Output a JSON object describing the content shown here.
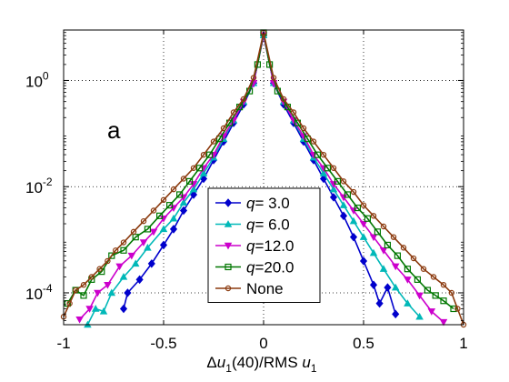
{
  "chart_data": {
    "type": "line",
    "title": "",
    "panel_label": "a",
    "xlabel": {
      "prefix": "Δ",
      "var": "u",
      "sub": "1",
      "middle": "(40)/RMS ",
      "var2": "u",
      "sub2": "1"
    },
    "ylabel": "",
    "xlim": [
      -1,
      1
    ],
    "ylim_log10": [
      -4.6,
      0.95
    ],
    "y_scale": "log",
    "grid": true,
    "legend_placement": "lower-center",
    "x_ticks": [
      {
        "value": -1,
        "label": "-1"
      },
      {
        "value": -0.5,
        "label": "-0.5"
      },
      {
        "value": 0,
        "label": "0"
      },
      {
        "value": 0.5,
        "label": "0.5"
      },
      {
        "value": 1,
        "label": "1"
      }
    ],
    "y_ticks": [
      {
        "exp": 0,
        "base": "10",
        "sup": "0"
      },
      {
        "exp": -2,
        "base": "10",
        "sup": "-2"
      },
      {
        "exp": -4,
        "base": "10",
        "sup": "-4"
      }
    ],
    "series": [
      {
        "name": "q= 3.0",
        "label_q": "q",
        "label_rest": "= 3.0",
        "color": "#0000cc",
        "marker": "diamond",
        "points": [
          [
            -0.7,
            -4.3
          ],
          [
            -0.68,
            -4.0
          ],
          [
            -0.62,
            -3.75
          ],
          [
            -0.56,
            -3.45
          ],
          [
            -0.5,
            -3.1
          ],
          [
            -0.45,
            -2.8
          ],
          [
            -0.4,
            -2.45
          ],
          [
            -0.35,
            -2.15
          ],
          [
            -0.3,
            -1.85
          ],
          [
            -0.25,
            -1.5
          ],
          [
            -0.2,
            -1.15
          ],
          [
            -0.15,
            -0.8
          ],
          [
            -0.1,
            -0.45
          ],
          [
            -0.05,
            -0.05
          ],
          [
            0.0,
            0.85
          ],
          [
            0.05,
            -0.05
          ],
          [
            0.1,
            -0.45
          ],
          [
            0.15,
            -0.8
          ],
          [
            0.2,
            -1.15
          ],
          [
            0.25,
            -1.5
          ],
          [
            0.3,
            -1.85
          ],
          [
            0.35,
            -2.2
          ],
          [
            0.4,
            -2.55
          ],
          [
            0.45,
            -2.95
          ],
          [
            0.5,
            -3.4
          ],
          [
            0.55,
            -3.85
          ],
          [
            0.58,
            -4.2
          ],
          [
            0.62,
            -3.9
          ],
          [
            0.66,
            -4.4
          ]
        ]
      },
      {
        "name": "q= 6.0",
        "label_q": "q",
        "label_rest": "= 6.0",
        "color": "#00b8b8",
        "marker": "triangle-up",
        "points": [
          [
            -0.88,
            -4.6
          ],
          [
            -0.84,
            -4.3
          ],
          [
            -0.8,
            -4.35
          ],
          [
            -0.76,
            -4.0
          ],
          [
            -0.7,
            -3.7
          ],
          [
            -0.64,
            -3.45
          ],
          [
            -0.58,
            -3.15
          ],
          [
            -0.5,
            -2.8
          ],
          [
            -0.45,
            -2.6
          ],
          [
            -0.4,
            -2.3
          ],
          [
            -0.35,
            -2.05
          ],
          [
            -0.3,
            -1.75
          ],
          [
            -0.25,
            -1.45
          ],
          [
            -0.2,
            -1.1
          ],
          [
            -0.15,
            -0.75
          ],
          [
            -0.1,
            -0.4
          ],
          [
            -0.05,
            -0.05
          ],
          [
            0.0,
            0.85
          ],
          [
            0.05,
            -0.05
          ],
          [
            0.1,
            -0.4
          ],
          [
            0.15,
            -0.75
          ],
          [
            0.2,
            -1.1
          ],
          [
            0.25,
            -1.45
          ],
          [
            0.3,
            -1.75
          ],
          [
            0.35,
            -2.05
          ],
          [
            0.4,
            -2.35
          ],
          [
            0.45,
            -2.65
          ],
          [
            0.5,
            -2.95
          ],
          [
            0.55,
            -3.25
          ],
          [
            0.6,
            -3.55
          ],
          [
            0.66,
            -3.9
          ],
          [
            0.72,
            -4.2
          ],
          [
            0.78,
            -4.45
          ]
        ]
      },
      {
        "name": "q=12.0",
        "label_q": "q",
        "label_rest": "=12.0",
        "color": "#cc00cc",
        "marker": "triangle-down",
        "points": [
          [
            -0.92,
            -4.5
          ],
          [
            -0.87,
            -4.3
          ],
          [
            -0.83,
            -4.0
          ],
          [
            -0.78,
            -3.85
          ],
          [
            -0.72,
            -3.5
          ],
          [
            -0.66,
            -3.3
          ],
          [
            -0.6,
            -3.05
          ],
          [
            -0.55,
            -2.85
          ],
          [
            -0.5,
            -2.6
          ],
          [
            -0.45,
            -2.4
          ],
          [
            -0.4,
            -2.2
          ],
          [
            -0.35,
            -1.95
          ],
          [
            -0.3,
            -1.65
          ],
          [
            -0.25,
            -1.4
          ],
          [
            -0.2,
            -1.05
          ],
          [
            -0.15,
            -0.75
          ],
          [
            -0.1,
            -0.4
          ],
          [
            -0.05,
            -0.05
          ],
          [
            0.0,
            0.85
          ],
          [
            0.05,
            -0.05
          ],
          [
            0.1,
            -0.4
          ],
          [
            0.15,
            -0.75
          ],
          [
            0.2,
            -1.05
          ],
          [
            0.25,
            -1.4
          ],
          [
            0.3,
            -1.65
          ],
          [
            0.35,
            -1.95
          ],
          [
            0.4,
            -2.2
          ],
          [
            0.45,
            -2.45
          ],
          [
            0.5,
            -2.7
          ],
          [
            0.55,
            -2.95
          ],
          [
            0.6,
            -3.2
          ],
          [
            0.66,
            -3.5
          ],
          [
            0.72,
            -3.75
          ],
          [
            0.78,
            -4.05
          ],
          [
            0.84,
            -4.35
          ],
          [
            0.9,
            -4.55
          ]
        ]
      },
      {
        "name": "q=20.0",
        "label_q": "q",
        "label_rest": "=20.0",
        "color": "#007700",
        "marker": "square",
        "points": [
          [
            -0.98,
            -4.2
          ],
          [
            -0.94,
            -3.95
          ],
          [
            -0.9,
            -4.05
          ],
          [
            -0.86,
            -3.75
          ],
          [
            -0.81,
            -3.6
          ],
          [
            -0.76,
            -3.3
          ],
          [
            -0.7,
            -3.2
          ],
          [
            -0.64,
            -2.95
          ],
          [
            -0.58,
            -2.8
          ],
          [
            -0.52,
            -2.55
          ],
          [
            -0.47,
            -2.35
          ],
          [
            -0.42,
            -2.15
          ],
          [
            -0.37,
            -1.9
          ],
          [
            -0.32,
            -1.65
          ],
          [
            -0.27,
            -1.4
          ],
          [
            -0.22,
            -1.1
          ],
          [
            -0.17,
            -0.8
          ],
          [
            -0.12,
            -0.5
          ],
          [
            -0.07,
            -0.2
          ],
          [
            -0.03,
            0.3
          ],
          [
            0.0,
            0.9
          ],
          [
            0.03,
            0.3
          ],
          [
            0.07,
            -0.2
          ],
          [
            0.12,
            -0.5
          ],
          [
            0.17,
            -0.8
          ],
          [
            0.22,
            -1.1
          ],
          [
            0.27,
            -1.4
          ],
          [
            0.32,
            -1.65
          ],
          [
            0.37,
            -1.9
          ],
          [
            0.42,
            -2.15
          ],
          [
            0.47,
            -2.4
          ],
          [
            0.52,
            -2.6
          ],
          [
            0.57,
            -2.85
          ],
          [
            0.62,
            -3.1
          ],
          [
            0.67,
            -3.3
          ],
          [
            0.72,
            -3.55
          ],
          [
            0.77,
            -3.75
          ],
          [
            0.82,
            -3.95
          ],
          [
            0.86,
            -4.05
          ],
          [
            0.9,
            -4.15
          ],
          [
            0.95,
            -4.3
          ]
        ]
      },
      {
        "name": "None",
        "label_q": "",
        "label_rest": "None",
        "color": "#8b3a0e",
        "marker": "circle",
        "points": [
          [
            -1.0,
            -4.45
          ],
          [
            -0.97,
            -4.2
          ],
          [
            -0.94,
            -3.95
          ],
          [
            -0.9,
            -3.85
          ],
          [
            -0.86,
            -3.7
          ],
          [
            -0.82,
            -3.55
          ],
          [
            -0.78,
            -3.4
          ],
          [
            -0.74,
            -3.2
          ],
          [
            -0.7,
            -3.05
          ],
          [
            -0.65,
            -2.85
          ],
          [
            -0.6,
            -2.65
          ],
          [
            -0.55,
            -2.45
          ],
          [
            -0.5,
            -2.25
          ],
          [
            -0.45,
            -2.05
          ],
          [
            -0.4,
            -1.85
          ],
          [
            -0.35,
            -1.65
          ],
          [
            -0.3,
            -1.4
          ],
          [
            -0.25,
            -1.15
          ],
          [
            -0.2,
            -0.9
          ],
          [
            -0.15,
            -0.6
          ],
          [
            -0.1,
            -0.35
          ],
          [
            -0.05,
            0.05
          ],
          [
            0.0,
            0.9
          ],
          [
            0.05,
            0.05
          ],
          [
            0.1,
            -0.35
          ],
          [
            0.15,
            -0.6
          ],
          [
            0.2,
            -0.9
          ],
          [
            0.25,
            -1.15
          ],
          [
            0.3,
            -1.4
          ],
          [
            0.35,
            -1.65
          ],
          [
            0.4,
            -1.9
          ],
          [
            0.45,
            -2.1
          ],
          [
            0.5,
            -2.35
          ],
          [
            0.55,
            -2.55
          ],
          [
            0.6,
            -2.75
          ],
          [
            0.65,
            -2.95
          ],
          [
            0.7,
            -3.15
          ],
          [
            0.75,
            -3.35
          ],
          [
            0.8,
            -3.55
          ],
          [
            0.85,
            -3.7
          ],
          [
            0.9,
            -3.85
          ],
          [
            0.94,
            -4.0
          ],
          [
            0.97,
            -4.3
          ],
          [
            1.0,
            -4.6
          ]
        ]
      }
    ]
  }
}
